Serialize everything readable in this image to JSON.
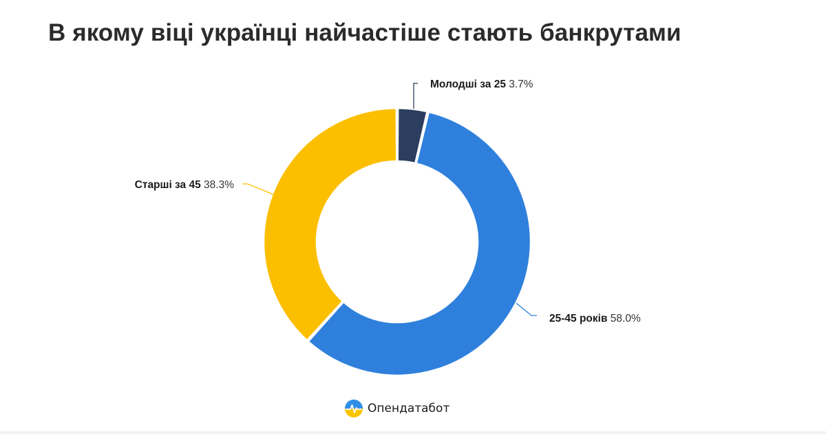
{
  "title": "В якому віці українці найчастіше стають банкрутами",
  "brand": {
    "name": "Опендатабот",
    "logo_icon": "opendatabot-logo-icon"
  },
  "chart_data": {
    "type": "pie",
    "variant": "donut",
    "title": "В якому віці українці найчастіше стають банкрутами",
    "start_angle_deg": 0,
    "direction": "clockwise",
    "series": [
      {
        "name": "Молодші за 25",
        "value": 3.7,
        "value_label": "3.7%",
        "color": "#2c3e5f"
      },
      {
        "name": "25-45 років",
        "value": 58.0,
        "value_label": "58.0%",
        "color": "#2f80dc"
      },
      {
        "name": "Старші за 45",
        "value": 38.3,
        "value_label": "38.3%",
        "color": "#fcbf00"
      }
    ]
  }
}
